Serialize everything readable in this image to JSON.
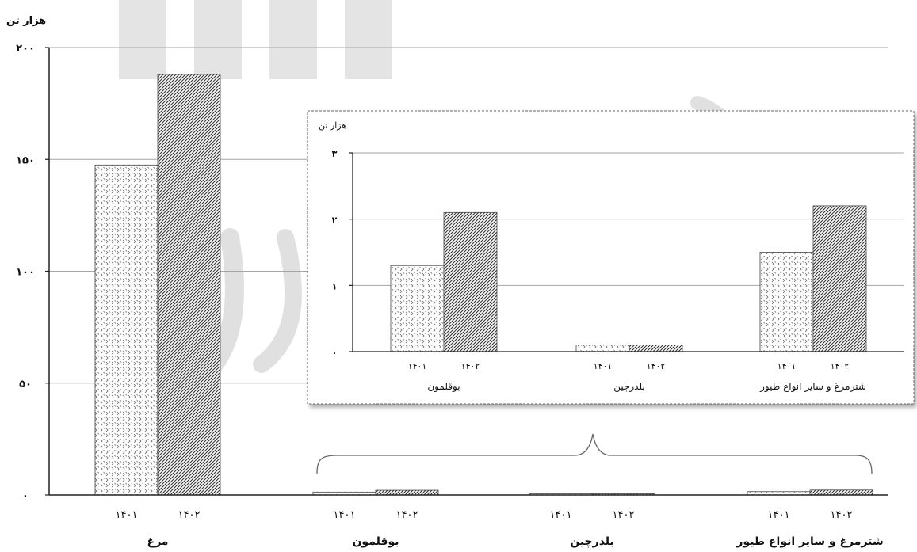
{
  "chart_data": [
    {
      "type": "bar",
      "ylabel": "هزار تن",
      "ylim": [
        0,
        200
      ],
      "yticks": [
        "۰",
        "۵۰",
        "۱۰۰",
        "۱۵۰",
        "۲۰۰"
      ],
      "ytick_values": [
        0,
        50,
        100,
        150,
        200
      ],
      "grid": true,
      "categories": [
        "مرغ",
        "بوقلمون",
        "بلدرچین",
        "شترمرغ و سایر انواع طیور"
      ],
      "series": [
        {
          "name": "۱۴۰۱",
          "values": [
            147.5,
            1.3,
            0.1,
            1.5
          ]
        },
        {
          "name": "۱۴۰۲",
          "values": [
            188,
            2.1,
            0.1,
            2.2
          ]
        }
      ]
    },
    {
      "type": "bar",
      "ylabel": "هزار تن",
      "ylim": [
        0,
        3
      ],
      "yticks": [
        "۰",
        "۱",
        "۲",
        "۳"
      ],
      "ytick_values": [
        0,
        1,
        2,
        3
      ],
      "grid": true,
      "categories": [
        "بوقلمون",
        "بلدرچین",
        "شترمرغ و سایر انواع طیور"
      ],
      "series": [
        {
          "name": "۱۴۰۱",
          "values": [
            1.3,
            0.1,
            1.5
          ]
        },
        {
          "name": "۱۴۰۲",
          "values": [
            2.1,
            0.1,
            2.2
          ]
        }
      ]
    }
  ],
  "colors": {
    "watermark": "#c4c4c4",
    "grid": "#a6a6a6",
    "bar_stroke": "#444444"
  }
}
